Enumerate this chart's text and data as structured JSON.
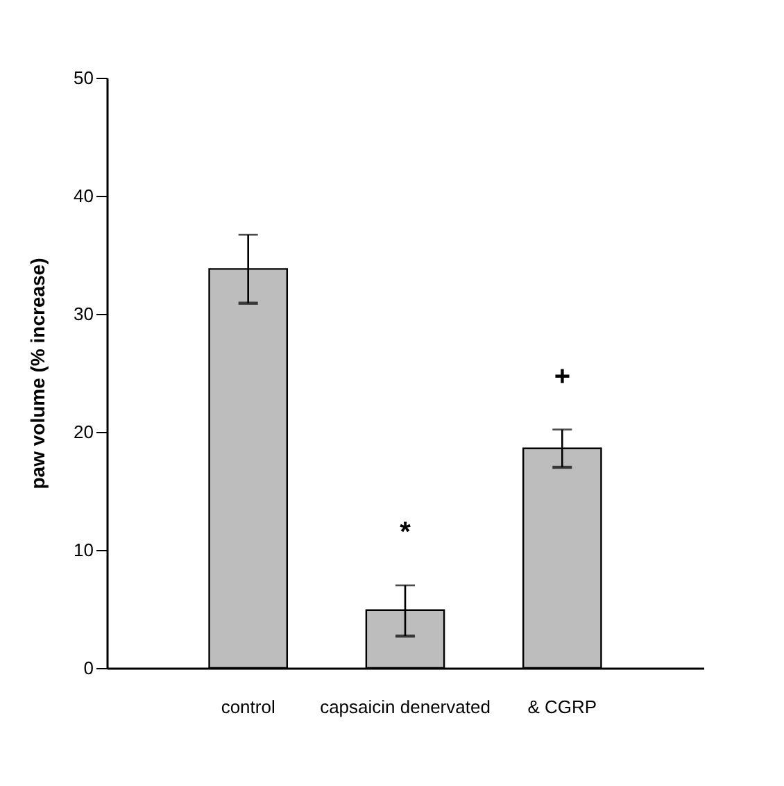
{
  "chart_data": {
    "type": "bar",
    "ylabel": "paw volume (% increase)",
    "categories": [
      "control",
      "capsaicin denervated",
      "& CGRP"
    ],
    "values": [
      33.8,
      4.9,
      18.6
    ],
    "errors": [
      [
        30.9,
        36.7
      ],
      [
        2.7,
        7.0
      ],
      [
        17.0,
        20.2
      ]
    ],
    "color": "#bdbdbd",
    "ylim": [
      0,
      50
    ],
    "yticks": [
      0,
      10,
      20,
      30,
      40,
      50
    ],
    "grid": false,
    "annotations": [
      "*",
      "+"
    ]
  }
}
